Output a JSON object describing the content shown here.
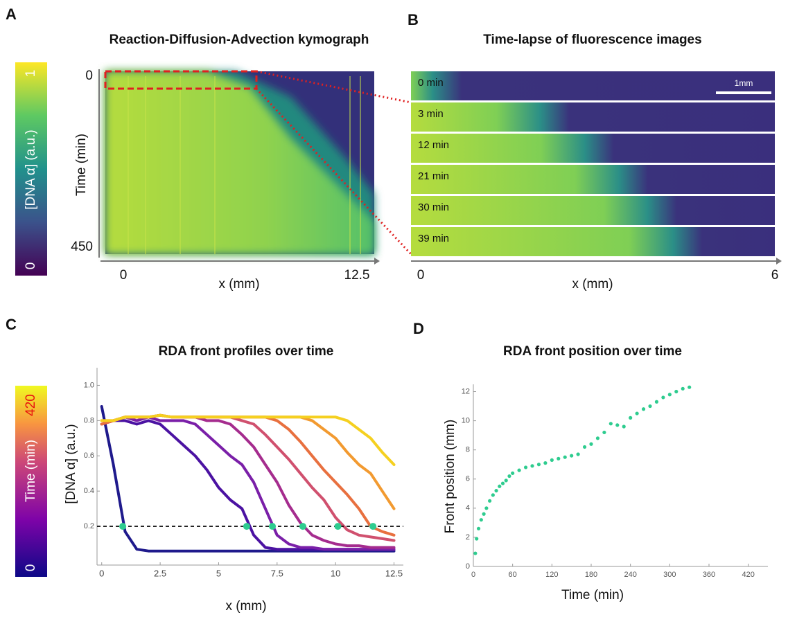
{
  "chart_data": [
    {
      "type": "heatmap",
      "panel": "A",
      "title": "Reaction-Diffusion-Advection kymograph",
      "xlabel": "x (mm)",
      "ylabel": "Time (min)",
      "xlim": [
        0,
        12.5
      ],
      "xticks": [
        0,
        12.5
      ],
      "ylim": [
        0,
        450
      ],
      "yticks": [
        0,
        450
      ],
      "colorbar": {
        "label": "[DNA α] (a.u.)",
        "ticks": [
          0,
          1
        ]
      }
    },
    {
      "type": "image",
      "panel": "B",
      "title": "Time-lapse of fluorescence images",
      "frames": [
        "0 min",
        "3 min",
        "12 min",
        "21 min",
        "30 min",
        "39 min"
      ],
      "scale_bar": "1mm",
      "xlabel": "x (mm)",
      "xlim": [
        0,
        6
      ],
      "xticks": [
        0,
        6
      ]
    },
    {
      "type": "line",
      "panel": "C",
      "title": "RDA front profiles over time",
      "xlabel": "x (mm)",
      "ylabel": "[DNA α] (a.u.)",
      "colorbar": {
        "label": "Time (min)",
        "ticks": [
          0,
          420
        ]
      },
      "xlim": [
        -0.2,
        12.9
      ],
      "xticks": [
        0,
        2.5,
        5,
        7.5,
        10,
        12.5
      ],
      "ylim": [
        0,
        1.1
      ],
      "yticks": [
        0.2,
        0.4,
        0.6,
        0.8,
        {
          "value": 1,
          "label": "1.0"
        }
      ],
      "x": [
        0,
        0.5,
        1,
        1.5,
        2,
        2.5,
        3,
        3.5,
        4,
        4.5,
        5,
        5.5,
        6,
        6.5,
        7,
        7.5,
        8,
        8.5,
        9,
        9.5,
        10,
        10.5,
        11,
        11.5,
        12,
        12.5
      ],
      "series": [
        {
          "color": "#1f1a8c",
          "values": [
            0.88,
            0.55,
            0.17,
            0.07,
            0.06,
            0.06,
            0.06,
            0.06,
            0.06,
            0.06,
            0.06,
            0.06,
            0.06,
            0.06,
            0.06,
            0.06,
            0.06,
            0.06,
            0.06,
            0.06,
            0.06,
            0.06,
            0.06,
            0.06,
            0.06,
            0.06
          ]
        },
        {
          "color": "#4b12a2",
          "values": [
            0.78,
            0.8,
            0.8,
            0.78,
            0.8,
            0.78,
            0.72,
            0.66,
            0.6,
            0.52,
            0.42,
            0.35,
            0.3,
            0.15,
            0.08,
            0.07,
            0.07,
            0.07,
            0.07,
            0.07,
            0.07,
            0.07,
            0.07,
            0.07,
            0.07,
            0.07
          ]
        },
        {
          "color": "#7a1fa8",
          "values": [
            0.78,
            0.8,
            0.82,
            0.8,
            0.82,
            0.8,
            0.8,
            0.8,
            0.78,
            0.72,
            0.66,
            0.6,
            0.55,
            0.45,
            0.3,
            0.15,
            0.1,
            0.08,
            0.08,
            0.07,
            0.07,
            0.07,
            0.07,
            0.07,
            0.07,
            0.07
          ]
        },
        {
          "color": "#a52c8e",
          "values": [
            0.78,
            0.8,
            0.82,
            0.82,
            0.82,
            0.83,
            0.82,
            0.82,
            0.82,
            0.8,
            0.8,
            0.78,
            0.72,
            0.65,
            0.55,
            0.45,
            0.32,
            0.22,
            0.15,
            0.12,
            0.1,
            0.09,
            0.09,
            0.08,
            0.08,
            0.08
          ]
        },
        {
          "color": "#d0506e",
          "values": [
            0.78,
            0.8,
            0.82,
            0.82,
            0.82,
            0.83,
            0.82,
            0.82,
            0.82,
            0.82,
            0.82,
            0.82,
            0.8,
            0.78,
            0.72,
            0.65,
            0.58,
            0.5,
            0.42,
            0.35,
            0.25,
            0.18,
            0.15,
            0.14,
            0.13,
            0.12
          ]
        },
        {
          "color": "#e8703f",
          "values": [
            0.78,
            0.8,
            0.82,
            0.82,
            0.82,
            0.83,
            0.82,
            0.82,
            0.82,
            0.82,
            0.82,
            0.82,
            0.82,
            0.82,
            0.82,
            0.8,
            0.75,
            0.68,
            0.6,
            0.52,
            0.45,
            0.38,
            0.3,
            0.2,
            0.17,
            0.15
          ]
        },
        {
          "color": "#f29a30",
          "values": [
            0.8,
            0.8,
            0.82,
            0.82,
            0.82,
            0.83,
            0.82,
            0.82,
            0.82,
            0.82,
            0.82,
            0.82,
            0.82,
            0.82,
            0.82,
            0.82,
            0.82,
            0.82,
            0.8,
            0.75,
            0.7,
            0.62,
            0.55,
            0.5,
            0.4,
            0.3
          ]
        },
        {
          "color": "#f5d020",
          "values": [
            0.8,
            0.8,
            0.82,
            0.82,
            0.82,
            0.83,
            0.82,
            0.82,
            0.82,
            0.82,
            0.82,
            0.82,
            0.82,
            0.82,
            0.82,
            0.82,
            0.82,
            0.82,
            0.82,
            0.82,
            0.82,
            0.8,
            0.75,
            0.7,
            0.62,
            0.55
          ]
        }
      ],
      "threshold": 0.2,
      "fronts": {
        "color": "#2ecc8f",
        "x": [
          0.9,
          6.2,
          7.3,
          8.6,
          10.1,
          11.6
        ],
        "y": [
          0.2,
          0.2,
          0.2,
          0.2,
          0.2,
          0.2
        ]
      }
    },
    {
      "type": "scatter",
      "panel": "D",
      "title": "RDA front position over time",
      "xlabel": "Time (min)",
      "ylabel": "Front position (mm)",
      "color": "#2ecc8f",
      "xlim": [
        0,
        450
      ],
      "xticks": [
        0,
        60,
        120,
        180,
        240,
        300,
        360,
        420
      ],
      "ylim": [
        0,
        12.5
      ],
      "yticks": [
        0,
        2,
        4,
        6,
        8,
        10,
        12
      ],
      "x": [
        3,
        5,
        8,
        12,
        16,
        20,
        25,
        30,
        35,
        40,
        45,
        50,
        55,
        60,
        70,
        80,
        90,
        100,
        110,
        120,
        130,
        140,
        150,
        160,
        170,
        180,
        190,
        200,
        210,
        220,
        230,
        240,
        250,
        260,
        270,
        280,
        290,
        300,
        310,
        320,
        330
      ],
      "y": [
        0.9,
        1.9,
        2.6,
        3.2,
        3.6,
        4.0,
        4.5,
        4.9,
        5.2,
        5.5,
        5.7,
        5.9,
        6.2,
        6.4,
        6.6,
        6.8,
        6.9,
        7.0,
        7.1,
        7.3,
        7.4,
        7.5,
        7.6,
        7.7,
        8.2,
        8.4,
        8.8,
        9.2,
        9.8,
        9.7,
        9.6,
        10.2,
        10.5,
        10.8,
        11.0,
        11.3,
        11.6,
        11.8,
        12.0,
        12.2,
        12.3
      ]
    }
  ]
}
